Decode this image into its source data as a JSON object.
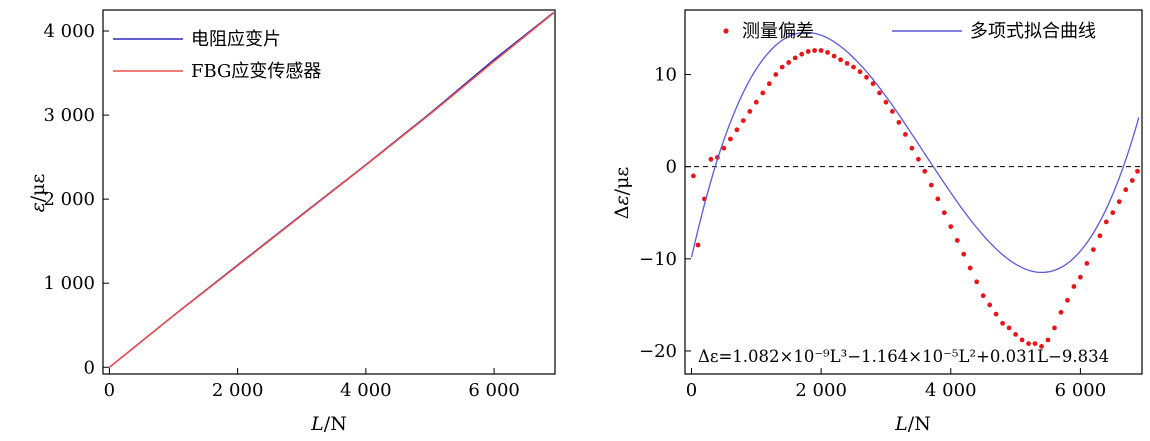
{
  "chart_data": [
    {
      "type": "line",
      "xlabel": "L/N",
      "ylabel": "ε/με",
      "xlim": [
        -100,
        6950
      ],
      "ylim": [
        -80,
        4250
      ],
      "xticks": [
        0,
        2000,
        4000,
        6000
      ],
      "xtick_labels": [
        "0",
        "2 000",
        "4 000",
        "6 000"
      ],
      "yticks": [
        0,
        1000,
        2000,
        3000,
        4000
      ],
      "ytick_labels": [
        "0",
        "1 000",
        "2 000",
        "3 000",
        "4 000"
      ],
      "legend_position": "top-left",
      "grid": false,
      "series": [
        {
          "name": "电阻应变片",
          "color": "#2b2bbf",
          "x": [
            0,
            1000,
            2000,
            3000,
            4000,
            5000,
            6000,
            6930
          ],
          "y": [
            0,
            615,
            1215,
            1815,
            2410,
            3020,
            3660,
            4220
          ]
        },
        {
          "name": "FBG应变传感器",
          "color": "#f0504a",
          "x": [
            0,
            1000,
            2000,
            3000,
            4000,
            5000,
            6000,
            6930
          ],
          "y": [
            0,
            612,
            1208,
            1808,
            2405,
            3010,
            3640,
            4215
          ]
        }
      ]
    },
    {
      "type": "scatter",
      "xlabel": "L/N",
      "ylabel": "Δε/με",
      "xlim": [
        -100,
        6950
      ],
      "ylim": [
        -22.5,
        17
      ],
      "xticks": [
        0,
        2000,
        4000,
        6000
      ],
      "xtick_labels": [
        "0",
        "2 000",
        "4 000",
        "6 000"
      ],
      "yticks": [
        -20,
        -10,
        0,
        10
      ],
      "ytick_labels": [
        "−20",
        "−10",
        "0",
        "10"
      ],
      "legend_position": "top",
      "grid": false,
      "reference_line": 0,
      "series": [
        {
          "name": "测量偏差",
          "kind": "points",
          "color": "#e8161b",
          "x": [
            30,
            100,
            200,
            300,
            400,
            500,
            600,
            700,
            800,
            900,
            1000,
            1100,
            1200,
            1300,
            1400,
            1500,
            1600,
            1700,
            1800,
            1900,
            2000,
            2100,
            2200,
            2300,
            2400,
            2500,
            2600,
            2700,
            2800,
            2900,
            3000,
            3100,
            3200,
            3300,
            3400,
            3500,
            3600,
            3700,
            3800,
            3900,
            4000,
            4100,
            4200,
            4300,
            4400,
            4500,
            4600,
            4700,
            4800,
            4900,
            5000,
            5100,
            5200,
            5300,
            5400,
            5500,
            5600,
            5700,
            5800,
            5900,
            6000,
            6100,
            6200,
            6300,
            6400,
            6500,
            6600,
            6700,
            6800,
            6880
          ],
          "y": [
            -1.0,
            -8.5,
            -3.5,
            0.8,
            1.0,
            2.0,
            3.0,
            4.0,
            5.0,
            6.0,
            7.0,
            8.0,
            9.0,
            10.0,
            10.8,
            11.3,
            11.8,
            12.2,
            12.5,
            12.6,
            12.6,
            12.4,
            12.0,
            11.6,
            11.2,
            10.8,
            10.3,
            9.7,
            9.0,
            8.0,
            7.0,
            6.0,
            4.8,
            3.5,
            2.0,
            0.8,
            -0.5,
            -2.0,
            -3.5,
            -5.0,
            -6.5,
            -8.0,
            -9.5,
            -11.0,
            -12.5,
            -14.0,
            -15.0,
            -16.0,
            -17.0,
            -17.5,
            -18.2,
            -18.8,
            -19.2,
            -19.2,
            -19.5,
            -18.8,
            -17.5,
            -15.8,
            -14.5,
            -13.0,
            -12.0,
            -10.5,
            -9.0,
            -7.5,
            -6.0,
            -5.0,
            -3.8,
            -2.5,
            -1.5,
            -0.5
          ]
        },
        {
          "name": "多项式拟合曲线",
          "kind": "curve",
          "color": "#5b5bd6",
          "equation_coefficients": {
            "c3": 1.082e-09,
            "c2": -1.164e-05,
            "c1": 0.031,
            "c0": -9.834
          },
          "x_range": [
            0,
            6900
          ]
        }
      ],
      "annotation": "Δε=1.082×10⁻⁹L³−1.164×10⁻⁵L²+0.031L−9.834"
    }
  ]
}
